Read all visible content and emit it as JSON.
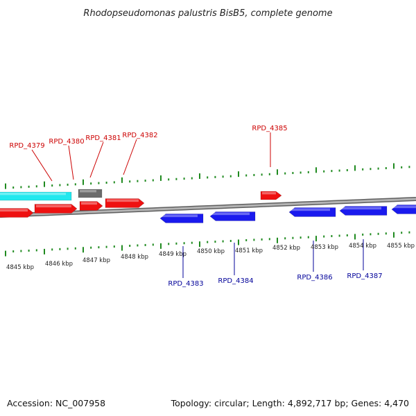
{
  "title": "Rhodopseudomonas palustris BisB5, complete genome",
  "footer": {
    "accession": "Accession: NC_007958",
    "summary": "Topology: circular; Length: 4,892,717 bp; Genes: 4,470"
  },
  "colors": {
    "forward_gene": "#ee1111",
    "reverse_gene": "#1a1aee",
    "rna_gene": "#22e8ee",
    "other_feature": "#6b6b6b",
    "backbone": "#888888",
    "tick": "#1f8a1f",
    "forward_label": "#cc0000",
    "reverse_label": "#000099"
  },
  "scale": {
    "labels": [
      "4845 kbp",
      "4846 kbp",
      "4847 kbp",
      "4848 kbp",
      "4849 kbp",
      "4850 kbp",
      "4851 kbp",
      "4852 kbp",
      "4853 kbp",
      "4854 kbp",
      "4855 kbp"
    ]
  },
  "genes_forward": [
    {
      "label": "RPD_4379"
    },
    {
      "label": "RPD_4380"
    },
    {
      "label": "RPD_4381"
    },
    {
      "label": "RPD_4382"
    },
    {
      "label": "RPD_4385"
    }
  ],
  "genes_reverse": [
    {
      "label": "RPD_4383"
    },
    {
      "label": "RPD_4384"
    },
    {
      "label": "RPD_4386"
    },
    {
      "label": "RPD_4387"
    }
  ]
}
